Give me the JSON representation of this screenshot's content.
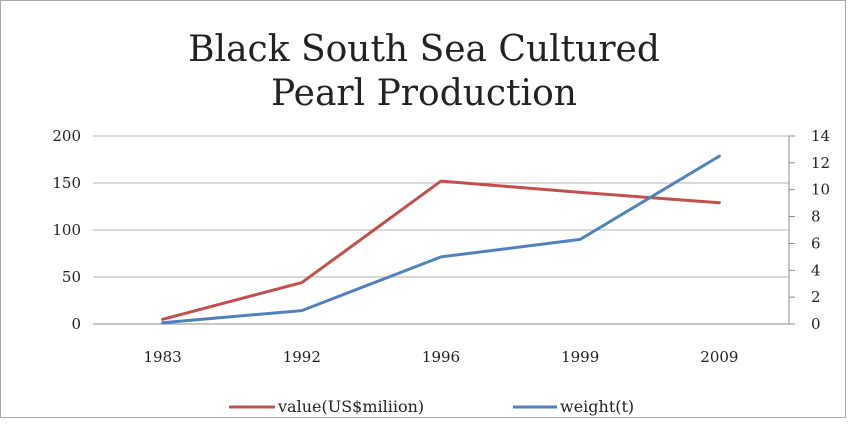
{
  "chart_data": {
    "type": "line",
    "title_lines": [
      "Black South Sea Cultured",
      "Pearl Production"
    ],
    "categories": [
      "1983",
      "1992",
      "1996",
      "1999",
      "2009"
    ],
    "y_left": {
      "ticks": [
        "0",
        "50",
        "100",
        "150",
        "200"
      ],
      "min": 0,
      "max": 200
    },
    "y_right": {
      "ticks": [
        "0",
        "2",
        "4",
        "6",
        "8",
        "10",
        "12",
        "14"
      ],
      "min": 0,
      "max": 14
    },
    "series": [
      {
        "name": "value(US$miliion)",
        "axis": "left",
        "color": "#c0504d",
        "values": [
          5,
          44,
          152,
          140,
          129
        ]
      },
      {
        "name": "weight(t)",
        "axis": "right",
        "color": "#4f81bd",
        "values": [
          0.1,
          1.0,
          5.0,
          6.3,
          12.5
        ]
      }
    ],
    "grid": true,
    "legend_position": "bottom"
  }
}
